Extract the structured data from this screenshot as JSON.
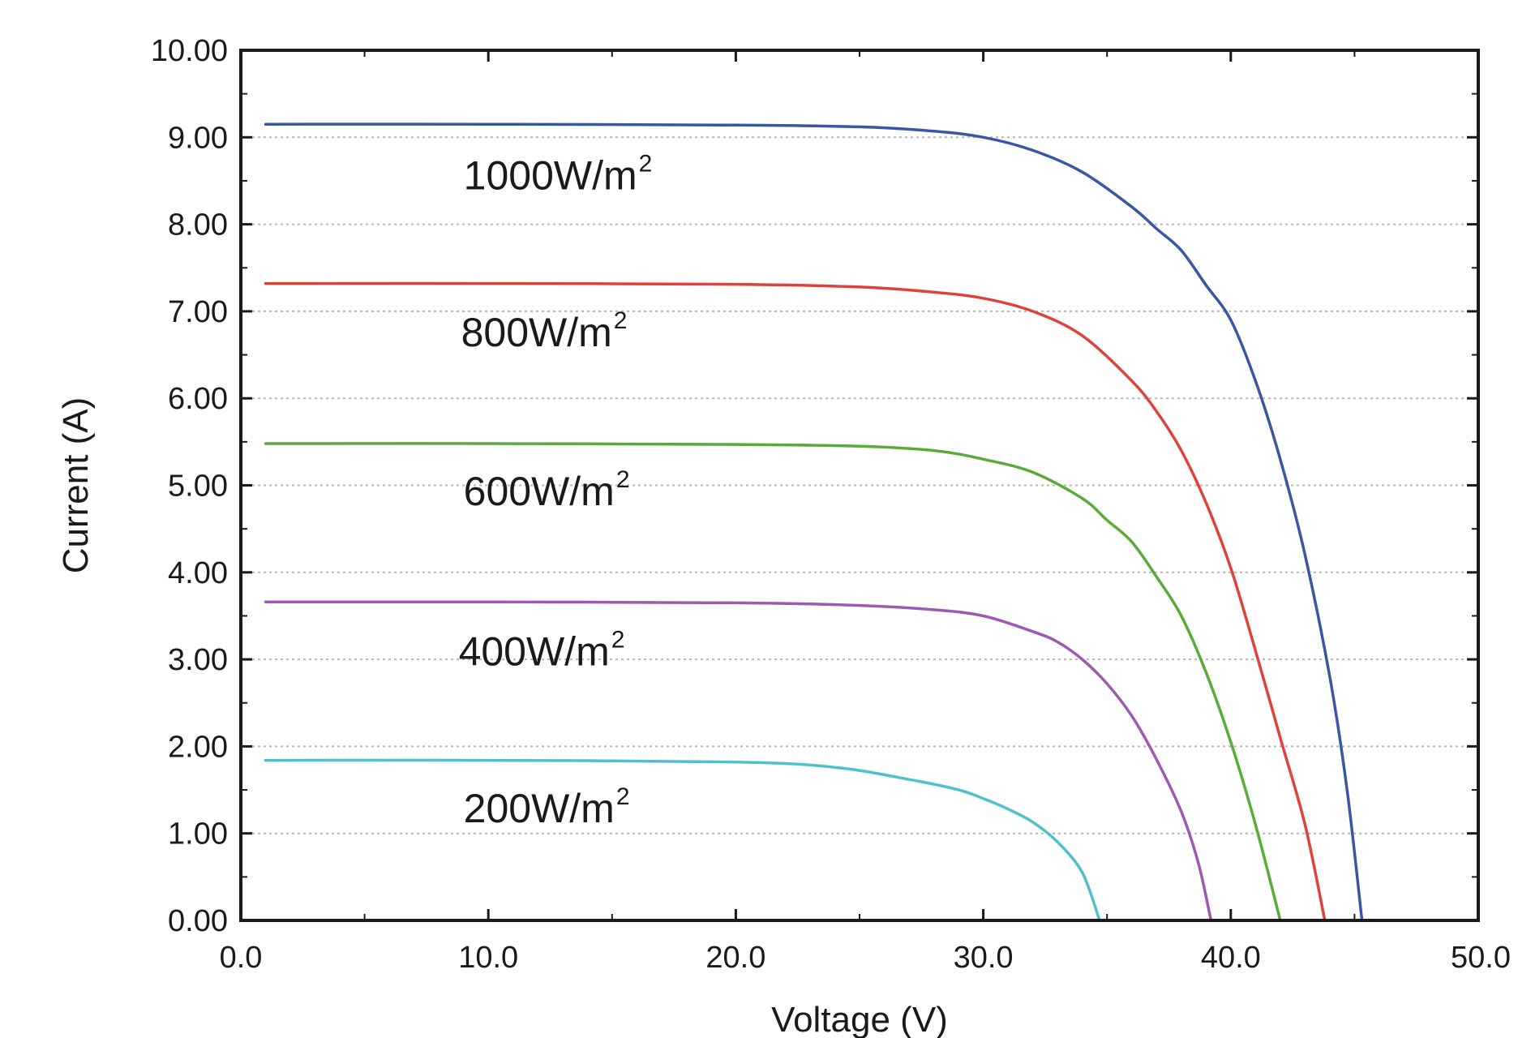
{
  "chart_data": {
    "type": "line",
    "title": "",
    "xlabel": "Voltage (V)",
    "ylabel": "Current (A)",
    "xlim": [
      0,
      50
    ],
    "ylim": [
      0,
      10
    ],
    "x_ticks": [
      "0.0",
      "10.0",
      "20.0",
      "30.0",
      "40.0",
      "50.0"
    ],
    "y_ticks": [
      "0.00",
      "1.00",
      "2.00",
      "3.00",
      "4.00",
      "5.00",
      "6.00",
      "7.00",
      "8.00",
      "9.00",
      "10.00"
    ],
    "grid": "horizontal-dotted",
    "series": [
      {
        "name": "1000W/m",
        "unit_sup": "2",
        "color": "#3a56a5",
        "label_anchor": [
          9.0,
          8.4
        ],
        "points": [
          [
            1.0,
            9.15
          ],
          [
            10,
            9.15
          ],
          [
            20,
            9.14
          ],
          [
            25,
            9.12
          ],
          [
            28,
            9.07
          ],
          [
            30,
            9.0
          ],
          [
            32,
            8.85
          ],
          [
            34,
            8.6
          ],
          [
            36,
            8.2
          ],
          [
            37,
            7.95
          ],
          [
            38,
            7.7
          ],
          [
            39,
            7.3
          ],
          [
            40,
            6.9
          ],
          [
            41,
            6.2
          ],
          [
            42,
            5.3
          ],
          [
            43,
            4.2
          ],
          [
            44,
            2.8
          ],
          [
            44.7,
            1.5
          ],
          [
            45.3,
            0.0
          ]
        ]
      },
      {
        "name": "800W/m",
        "unit_sup": "2",
        "color": "#e0423a",
        "label_anchor": [
          8.9,
          6.6
        ],
        "points": [
          [
            1.0,
            7.32
          ],
          [
            10,
            7.32
          ],
          [
            20,
            7.31
          ],
          [
            25,
            7.28
          ],
          [
            28,
            7.22
          ],
          [
            30,
            7.15
          ],
          [
            32,
            7.0
          ],
          [
            34,
            6.72
          ],
          [
            36,
            6.2
          ],
          [
            37,
            5.85
          ],
          [
            38,
            5.4
          ],
          [
            39,
            4.8
          ],
          [
            40,
            4.05
          ],
          [
            41,
            3.1
          ],
          [
            42,
            2.1
          ],
          [
            43,
            1.1
          ],
          [
            43.8,
            0.0
          ]
        ]
      },
      {
        "name": "600W/m",
        "unit_sup": "2",
        "color": "#5aac3a",
        "label_anchor": [
          9.0,
          4.77
        ],
        "points": [
          [
            1.0,
            5.48
          ],
          [
            10,
            5.48
          ],
          [
            20,
            5.47
          ],
          [
            25,
            5.45
          ],
          [
            28,
            5.4
          ],
          [
            30,
            5.3
          ],
          [
            32,
            5.15
          ],
          [
            34,
            4.85
          ],
          [
            35,
            4.6
          ],
          [
            36,
            4.35
          ],
          [
            37,
            3.95
          ],
          [
            38,
            3.5
          ],
          [
            39,
            2.85
          ],
          [
            40,
            2.05
          ],
          [
            41,
            1.1
          ],
          [
            42,
            0.0
          ]
        ]
      },
      {
        "name": "400W/m",
        "unit_sup": "2",
        "color": "#9e59b0",
        "label_anchor": [
          8.8,
          2.93
        ],
        "points": [
          [
            1.0,
            3.66
          ],
          [
            10,
            3.66
          ],
          [
            20,
            3.65
          ],
          [
            25,
            3.62
          ],
          [
            28,
            3.57
          ],
          [
            30,
            3.5
          ],
          [
            32,
            3.32
          ],
          [
            33,
            3.2
          ],
          [
            34,
            3.0
          ],
          [
            35,
            2.72
          ],
          [
            36,
            2.35
          ],
          [
            37,
            1.85
          ],
          [
            38,
            1.25
          ],
          [
            38.7,
            0.65
          ],
          [
            39.2,
            0.0
          ]
        ]
      },
      {
        "name": "200W/m",
        "unit_sup": "2",
        "color": "#4fc1cc",
        "label_anchor": [
          9.0,
          1.13
        ],
        "points": [
          [
            1.0,
            1.84
          ],
          [
            10,
            1.84
          ],
          [
            20,
            1.82
          ],
          [
            24,
            1.76
          ],
          [
            27,
            1.62
          ],
          [
            29,
            1.5
          ],
          [
            30,
            1.4
          ],
          [
            31,
            1.28
          ],
          [
            32,
            1.13
          ],
          [
            33,
            0.9
          ],
          [
            34,
            0.55
          ],
          [
            34.7,
            0.0
          ]
        ]
      }
    ]
  }
}
